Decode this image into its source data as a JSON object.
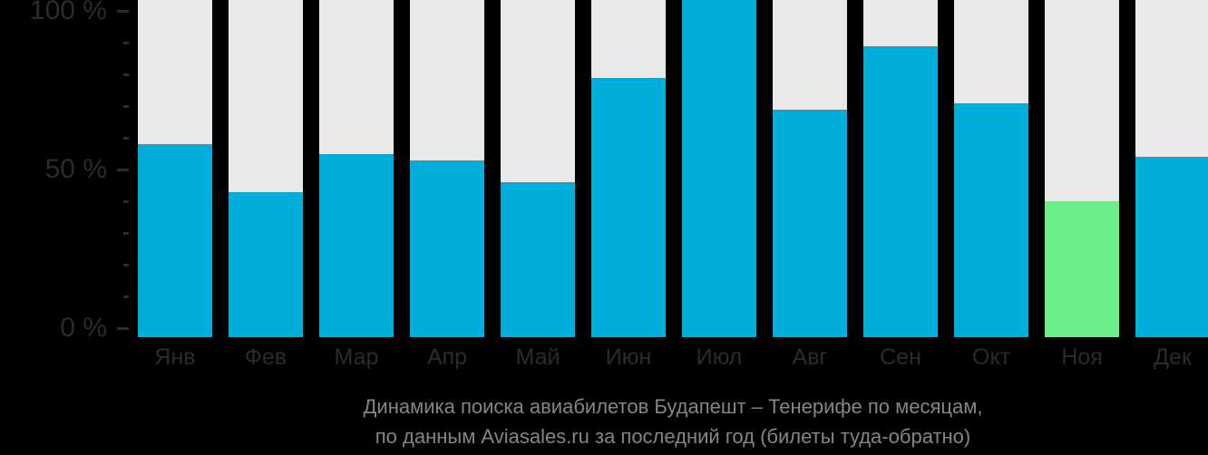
{
  "chart_data": {
    "type": "bar",
    "title_line1": "Динамика поиска авиабилетов Будапешт – Тенерифе по месяцам,",
    "title_line2": "по данным Aviasales.ru за последний год (билеты туда-обратно)",
    "categories": [
      "Янв",
      "Фев",
      "Мар",
      "Апр",
      "Май",
      "Июн",
      "Июл",
      "Авг",
      "Сен",
      "Окт",
      "Ноя",
      "Дек"
    ],
    "values": [
      58,
      43,
      55,
      53,
      46,
      79,
      100,
      69,
      89,
      71,
      40,
      54
    ],
    "unit": "%",
    "highlight_index": 10,
    "ylim": [
      0,
      100
    ],
    "yticks_major": [
      {
        "value": 0,
        "label": "0 %"
      },
      {
        "value": 50,
        "label": "50 %"
      },
      {
        "value": 100,
        "label": "100 %"
      }
    ],
    "yticks_minor": [
      10,
      20,
      30,
      40,
      60,
      70,
      80,
      90
    ],
    "grid": false,
    "legend": "none",
    "colors": {
      "bar": "#00AEDC",
      "highlight": "#6CEE8B",
      "track": "#E9E9E9",
      "background": "#000000",
      "axis_text": "#2B2B2B",
      "caption_text": "#858585"
    }
  }
}
